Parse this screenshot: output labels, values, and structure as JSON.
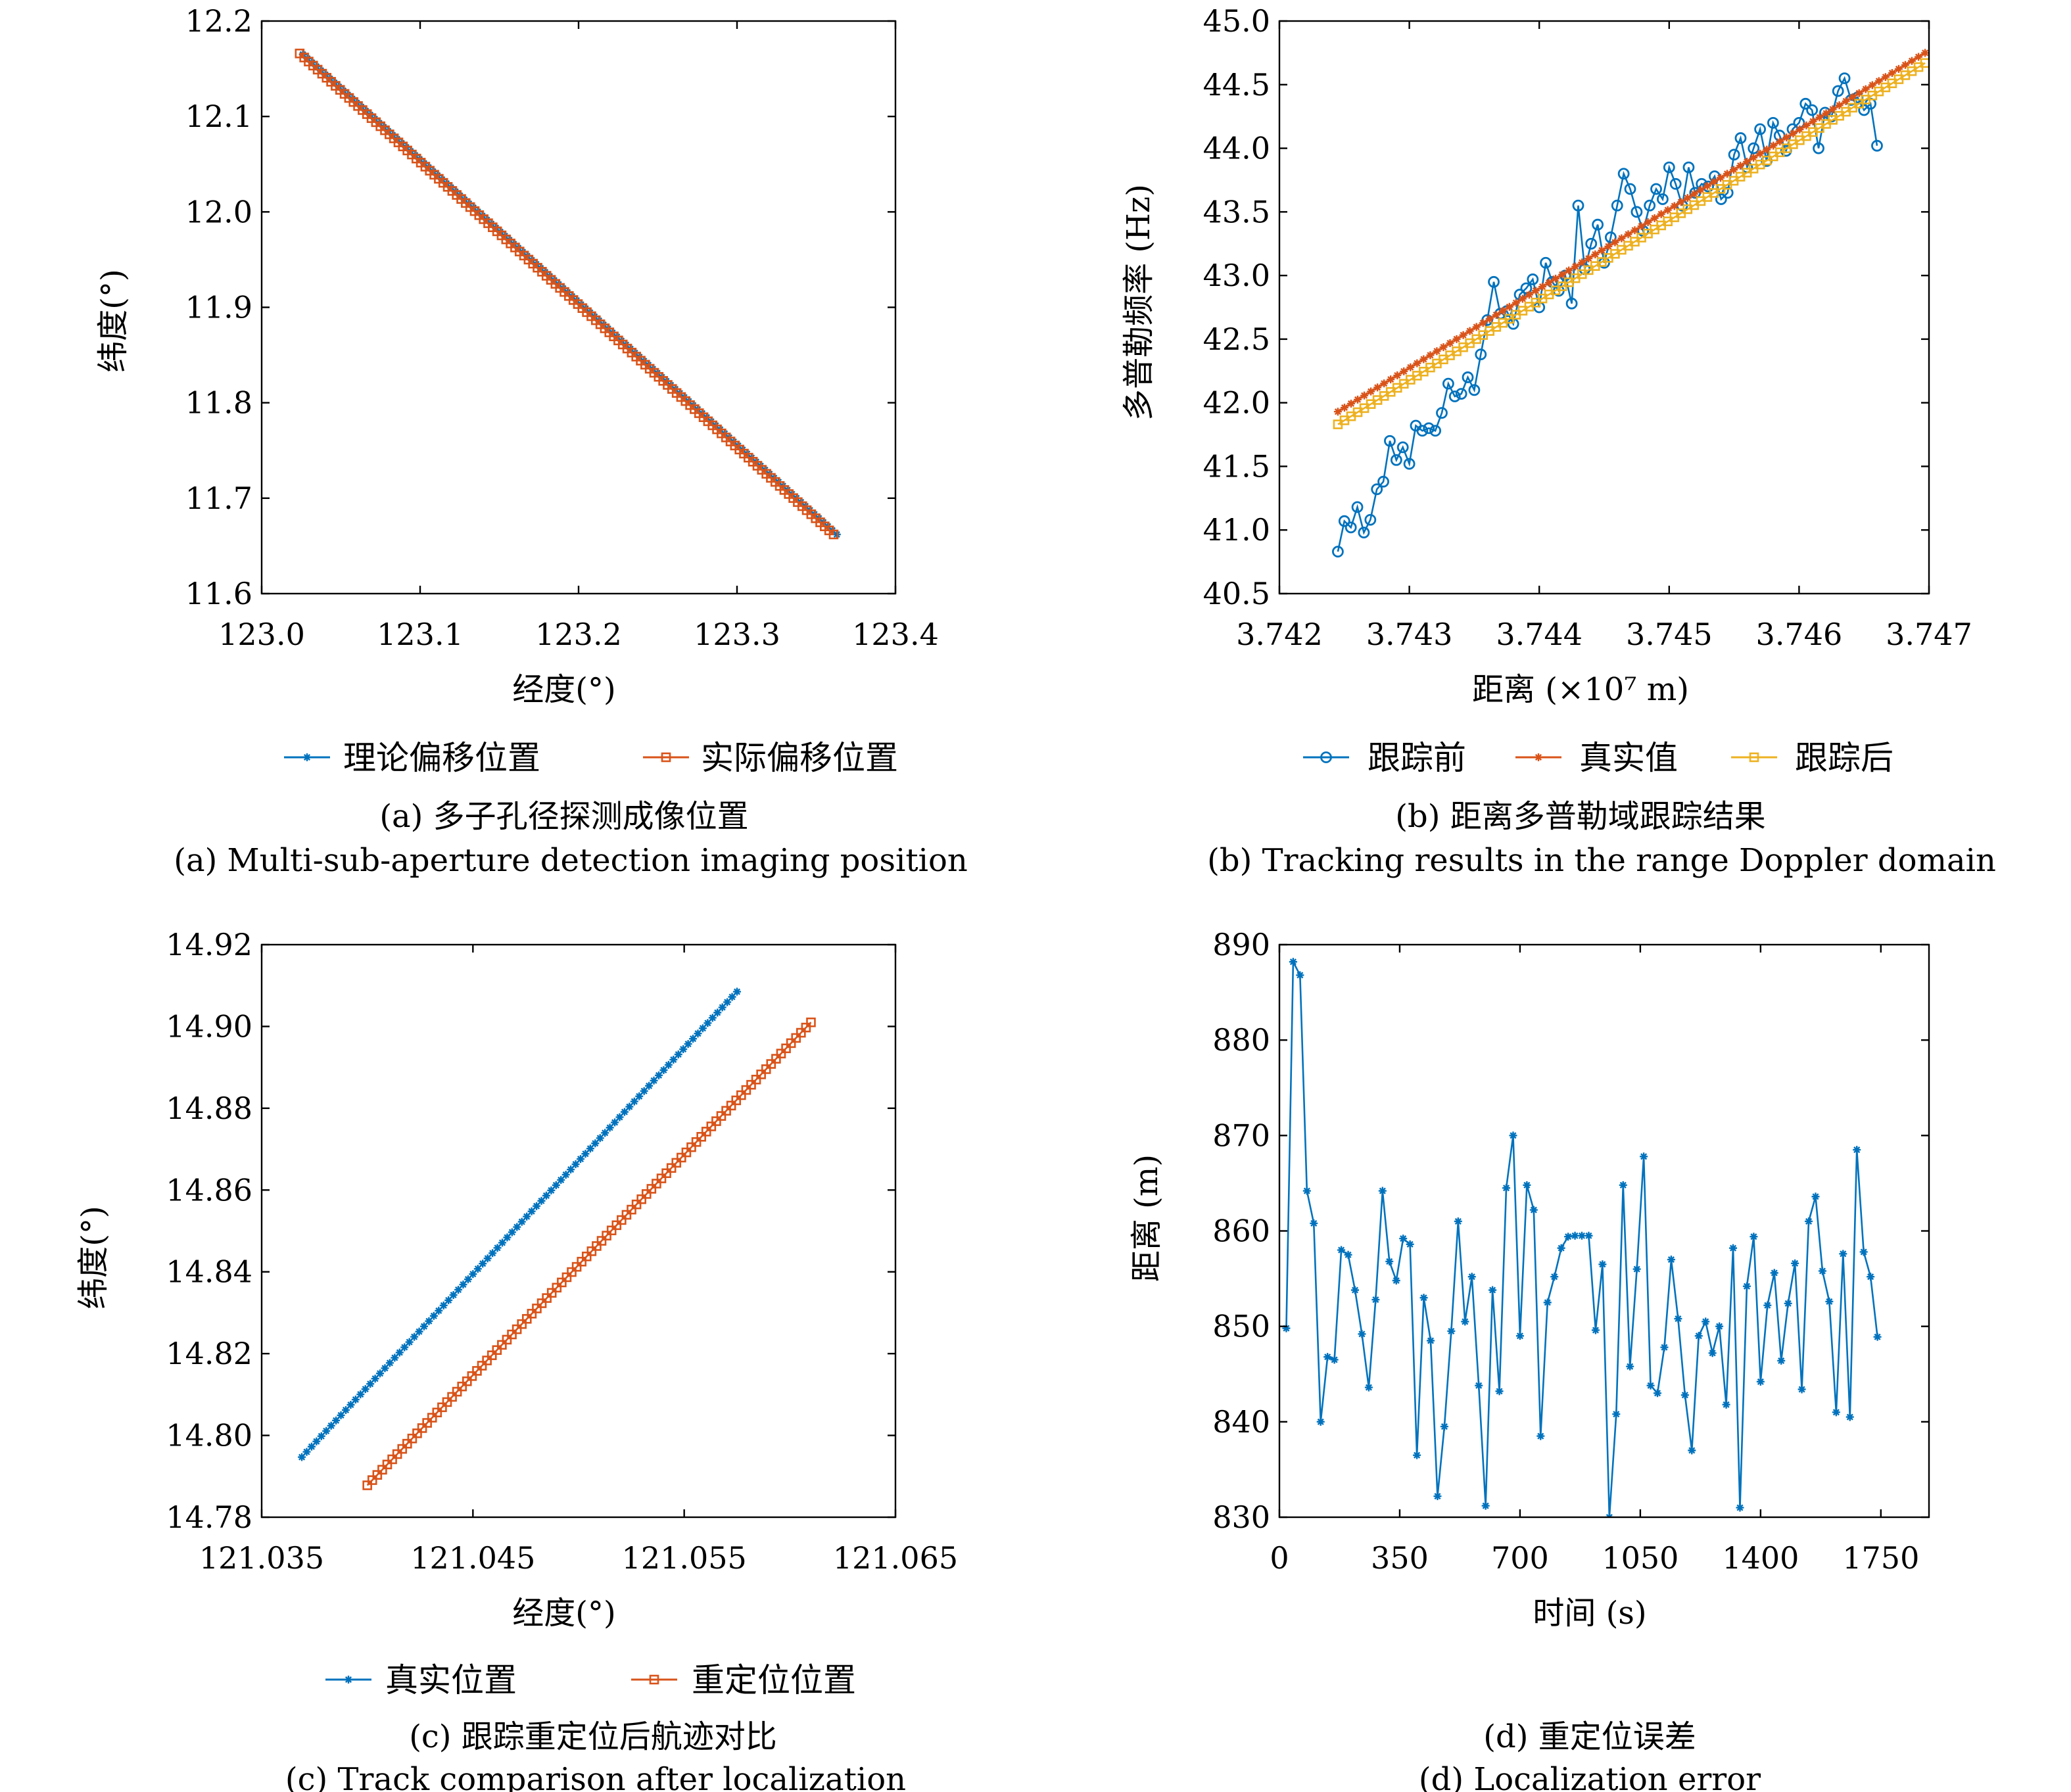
{
  "colors": {
    "blue": "#0072BD",
    "orange": "#D95319",
    "yellow": "#EDB120"
  },
  "chart_data": [
    {
      "id": "a",
      "type": "line",
      "title": "",
      "caption_cn": "(a) 多子孔径探测成像位置",
      "caption_en": "(a) Multi-sub-aperture detection imaging position",
      "xlabel": "经度(°)",
      "ylabel": "纬度(°)",
      "xlim": [
        123.0,
        123.4
      ],
      "ylim": [
        11.6,
        12.2
      ],
      "xticks": [
        "123.0",
        "123.1",
        "123.2",
        "123.3",
        "123.4"
      ],
      "yticks": [
        "11.6",
        "11.7",
        "11.8",
        "11.9",
        "12.0",
        "12.1",
        "12.2"
      ],
      "legend_position": "bottom",
      "series": [
        {
          "name": "理论偏移位置",
          "color": "#0072BD",
          "marker": "star",
          "x_range": [
            123.026,
            123.363
          ],
          "y_range": [
            12.165,
            11.662
          ],
          "count": 120
        },
        {
          "name": "实际偏移位置",
          "color": "#D95319",
          "marker": "square",
          "x_range": [
            123.024,
            123.361
          ],
          "y_range": [
            12.166,
            11.662
          ],
          "count": 120
        }
      ]
    },
    {
      "id": "b",
      "type": "line",
      "title": "",
      "caption_cn": "(b) 距离多普勒域跟踪结果",
      "caption_en": "(b) Tracking results in the range Doppler domain",
      "xlabel": "距离 (×10⁷ m)",
      "ylabel": "多普勒频率 (Hz)",
      "xlim": [
        3.742,
        3.747
      ],
      "ylim": [
        40.5,
        45.0
      ],
      "xticks": [
        "3.742",
        "3.743",
        "3.744",
        "3.745",
        "3.746",
        "3.747"
      ],
      "yticks": [
        "40.5",
        "41.0",
        "41.5",
        "42.0",
        "42.5",
        "43.0",
        "43.5",
        "44.0",
        "44.5",
        "45.0"
      ],
      "legend_position": "bottom",
      "series": [
        {
          "name": "跟踪前",
          "color": "#0072BD",
          "marker": "circle",
          "x_start": 3.74245,
          "x_step": 5e-05,
          "values": [
            40.83,
            41.07,
            41.02,
            41.18,
            40.98,
            41.08,
            41.32,
            41.38,
            41.7,
            41.55,
            41.65,
            41.52,
            41.82,
            41.78,
            41.8,
            41.78,
            41.92,
            42.15,
            42.05,
            42.07,
            42.2,
            42.1,
            42.38,
            42.65,
            42.95,
            42.7,
            42.72,
            42.62,
            42.85,
            42.9,
            42.97,
            42.75,
            43.1,
            42.95,
            42.88,
            43.0,
            42.78,
            43.55,
            43.05,
            43.25,
            43.4,
            43.1,
            43.3,
            43.55,
            43.8,
            43.68,
            43.5,
            43.35,
            43.55,
            43.68,
            43.6,
            43.85,
            43.72,
            43.55,
            43.85,
            43.65,
            43.72,
            43.7,
            43.78,
            43.6,
            43.65,
            43.95,
            44.08,
            43.85,
            44.0,
            44.15,
            43.9,
            44.2,
            44.1,
            43.98,
            44.15,
            44.2,
            44.35,
            44.3,
            44.0,
            44.28,
            44.25,
            44.45,
            44.55,
            44.38,
            44.4,
            44.3,
            44.35,
            44.02
          ]
        },
        {
          "name": "真实值",
          "color": "#D95319",
          "marker": "star",
          "x_range": [
            3.74245,
            3.74697
          ],
          "y_range": [
            41.93,
            44.75
          ],
          "count": 90
        },
        {
          "name": "跟踪后",
          "color": "#EDB120",
          "marker": "square",
          "x_range": [
            3.74245,
            3.74697
          ],
          "y_range": [
            41.83,
            44.67
          ],
          "count": 90
        }
      ]
    },
    {
      "id": "c",
      "type": "line",
      "title": "",
      "caption_cn": "(c) 跟踪重定位后航迹对比",
      "caption_en": "(c) Track comparison after localization",
      "xlabel": "经度(°)",
      "ylabel": "纬度(°)",
      "xlim": [
        121.035,
        121.065
      ],
      "ylim": [
        14.78,
        14.92
      ],
      "xticks": [
        "121.035",
        "121.045",
        "121.055",
        "121.065"
      ],
      "yticks": [
        "14.78",
        "14.80",
        "14.82",
        "14.84",
        "14.86",
        "14.88",
        "14.90",
        "14.92"
      ],
      "legend_position": "bottom",
      "series": [
        {
          "name": "真实位置",
          "color": "#0072BD",
          "marker": "star",
          "x_range": [
            121.0369,
            121.0575
          ],
          "y_range": [
            14.7947,
            14.9085
          ],
          "count": 90
        },
        {
          "name": "重定位位置",
          "color": "#D95319",
          "marker": "square",
          "x_range": [
            121.04,
            121.061
          ],
          "y_range": [
            14.7878,
            14.901
          ],
          "count": 90
        }
      ]
    },
    {
      "id": "d",
      "type": "line",
      "title": "",
      "caption_cn": "(d) 重定位误差",
      "caption_en": "(d) Localization error",
      "xlabel": "时间 (s)",
      "ylabel": "距离 (m)",
      "xlim": [
        0,
        1890
      ],
      "ylim": [
        830,
        890
      ],
      "xticks": [
        "0",
        "350",
        "700",
        "1050",
        "1400",
        "1750"
      ],
      "yticks": [
        "830",
        "840",
        "850",
        "860",
        "870",
        "880",
        "890"
      ],
      "legend_position": "none",
      "series": [
        {
          "name": "",
          "color": "#0072BD",
          "marker": "star",
          "x_start": 20,
          "x_step": 20,
          "values": [
            849.8,
            888.2,
            886.8,
            864.2,
            860.8,
            840.0,
            846.8,
            846.5,
            858.0,
            857.5,
            853.8,
            849.2,
            843.6,
            852.8,
            864.2,
            856.8,
            854.8,
            859.2,
            858.6,
            836.5,
            853.0,
            848.5,
            832.2,
            839.5,
            849.5,
            861.0,
            850.5,
            855.2,
            843.8,
            831.2,
            853.8,
            843.2,
            864.5,
            870.0,
            849.0,
            864.8,
            862.2,
            838.5,
            852.5,
            855.2,
            858.2,
            859.4,
            859.5,
            859.5,
            859.5,
            849.6,
            856.5,
            830.0,
            840.8,
            864.8,
            845.8,
            856.0,
            867.8,
            843.8,
            843.0,
            847.8,
            857.0,
            850.8,
            842.8,
            837.0,
            849.0,
            850.5,
            847.2,
            850.0,
            841.8,
            858.2,
            831.0,
            854.2,
            859.4,
            844.2,
            852.2,
            855.6,
            846.4,
            852.4,
            856.6,
            843.4,
            861.0,
            863.6,
            855.8,
            852.6,
            841.0,
            857.6,
            840.5,
            868.5,
            857.8,
            855.2,
            848.9
          ]
        }
      ]
    }
  ]
}
